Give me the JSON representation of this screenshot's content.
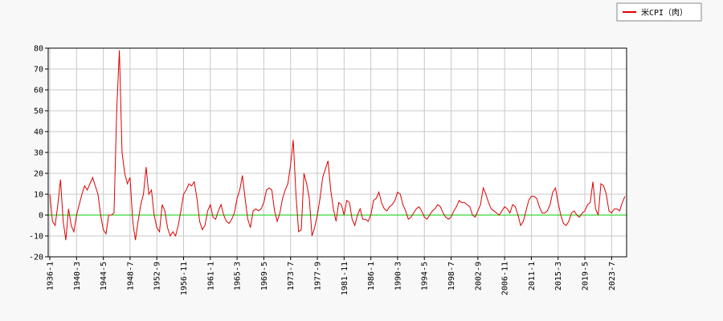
{
  "chart_data": {
    "type": "line",
    "categories": [
      "1936-1",
      null,
      null,
      null,
      null,
      null,
      null,
      null,
      null,
      null,
      "1940-3",
      null,
      null,
      null,
      null,
      null,
      null,
      null,
      null,
      null,
      "1944-5",
      null,
      null,
      null,
      null,
      null,
      null,
      null,
      null,
      null,
      "1948-7",
      null,
      null,
      null,
      null,
      null,
      null,
      null,
      null,
      null,
      "1952-9",
      null,
      null,
      null,
      null,
      null,
      null,
      null,
      null,
      null,
      "1956-11",
      null,
      null,
      null,
      null,
      null,
      null,
      null,
      null,
      null,
      "1961-1",
      null,
      null,
      null,
      null,
      null,
      null,
      null,
      null,
      null,
      "1965-3",
      null,
      null,
      null,
      null,
      null,
      null,
      null,
      null,
      null,
      "1969-5",
      null,
      null,
      null,
      null,
      null,
      null,
      null,
      null,
      null,
      "1973-7",
      null,
      null,
      null,
      null,
      null,
      null,
      null,
      null,
      null,
      "1977-9",
      null,
      null,
      null,
      null,
      null,
      null,
      null,
      null,
      null,
      "1981-11",
      null,
      null,
      null,
      null,
      null,
      null,
      null,
      null,
      null,
      "1986-1",
      null,
      null,
      null,
      null,
      null,
      null,
      null,
      null,
      null,
      "1990-3",
      null,
      null,
      null,
      null,
      null,
      null,
      null,
      null,
      null,
      "1994-5",
      null,
      null,
      null,
      null,
      null,
      null,
      null,
      null,
      null,
      "1998-7",
      null,
      null,
      null,
      null,
      null,
      null,
      null,
      null,
      null,
      "2002-9",
      null,
      null,
      null,
      null,
      null,
      null,
      null,
      null,
      null,
      "2006-11",
      null,
      null,
      null,
      null,
      null,
      null,
      null,
      null,
      null,
      "2011-1",
      null,
      null,
      null,
      null,
      null,
      null,
      null,
      null,
      null,
      "2015-3",
      null,
      null,
      null,
      null,
      null,
      null,
      null,
      null,
      null,
      "2019-5",
      null,
      null,
      null,
      null,
      null,
      null,
      null,
      null,
      null,
      "2023-7",
      null,
      null,
      null,
      null,
      null
    ],
    "series": [
      {
        "name": "米CPI（肉）",
        "color": "#dd0000",
        "values": [
          10,
          -3,
          -5,
          5,
          17,
          -3,
          -12,
          3,
          -5,
          -8,
          0,
          5,
          10,
          14,
          12,
          15,
          18,
          14,
          10,
          0,
          -7,
          -9,
          0,
          0,
          1,
          50,
          79,
          30,
          20,
          15,
          18,
          -3,
          -12,
          -3,
          5,
          10,
          23,
          10,
          12,
          0,
          -6,
          -8,
          5,
          2,
          -6,
          -10,
          -8,
          -10,
          -5,
          2,
          10,
          12,
          15,
          14,
          16,
          8,
          -3,
          -7,
          -5,
          2,
          5,
          -1,
          -2,
          2,
          5,
          0,
          -3,
          -4,
          -2,
          1,
          8,
          12,
          19,
          8,
          -2,
          -6,
          2,
          3,
          2,
          3,
          6,
          12,
          13,
          12,
          2,
          -3,
          1,
          8,
          12,
          15,
          24,
          36,
          10,
          -8,
          -7,
          20,
          15,
          8,
          -10,
          -6,
          0,
          8,
          18,
          22,
          26,
          12,
          3,
          -3,
          6,
          5,
          0,
          7,
          6,
          -2,
          -5,
          0,
          3,
          -2,
          -2,
          -3,
          0,
          7,
          8,
          11,
          6,
          3,
          2,
          4,
          5,
          7,
          11,
          10,
          5,
          2,
          -2,
          -1,
          1,
          3,
          4,
          2,
          -1,
          -2,
          0,
          2,
          3,
          5,
          4,
          1,
          -1,
          -2,
          -1,
          2,
          4,
          7,
          6,
          6,
          5,
          4,
          0,
          -1,
          2,
          5,
          13,
          10,
          6,
          3,
          2,
          1,
          0,
          2,
          4,
          3,
          1,
          5,
          4,
          0,
          -5,
          -3,
          2,
          7,
          9,
          9,
          8,
          4,
          1,
          1,
          2,
          5,
          11,
          13,
          6,
          0,
          -4,
          -5,
          -3,
          1,
          2,
          0,
          -1,
          1,
          2,
          5,
          6,
          16,
          3,
          0,
          15,
          14,
          10,
          2,
          1,
          3,
          3,
          2,
          6,
          9
        ]
      }
    ],
    "ylim": [
      -20,
      80
    ],
    "yticks": [
      -20,
      -10,
      0,
      10,
      20,
      30,
      40,
      50,
      60,
      70,
      80
    ],
    "grid": true,
    "legend": "top-right",
    "reference_line": {
      "value": 0,
      "color": "#00cc00"
    }
  }
}
